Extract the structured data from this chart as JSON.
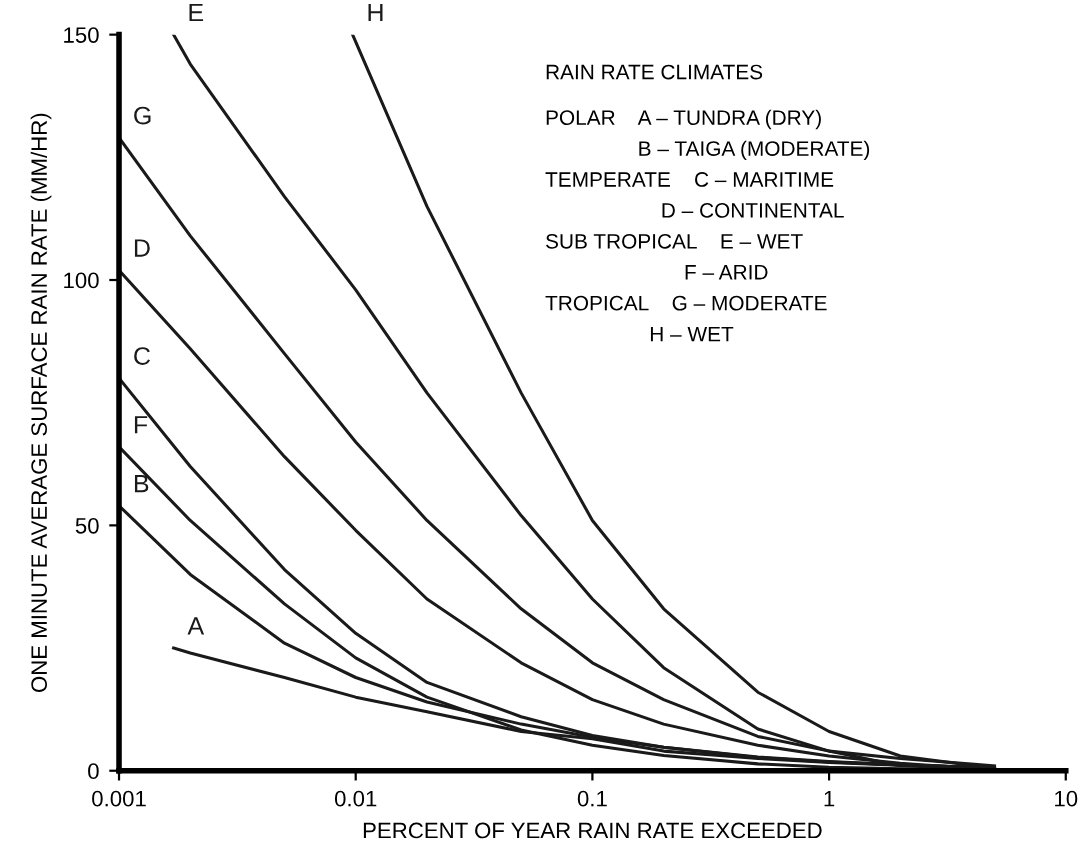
{
  "chart_data": {
    "type": "line",
    "xlabel": "PERCENT OF YEAR RAIN RATE EXCEEDED",
    "ylabel": "ONE MINUTE AVERAGE SURFACE RAIN RATE (MM/HR)",
    "log": "x",
    "xlim": [
      0.001,
      10
    ],
    "xticks": [
      0.001,
      0.01,
      0.1,
      1,
      10
    ],
    "ylim": [
      0,
      150
    ],
    "yticks": [
      0,
      50,
      100,
      150
    ],
    "grid": false,
    "legend": false,
    "marker": "none",
    "line_style": "solid",
    "annotations": [
      "RAIN RATE CLIMATES",
      "POLAR    A – TUNDRA (DRY)",
      "                B – TAIGA (MODERATE)",
      "TEMPERATE    C – MARITIME",
      "                    D – CONTINENTAL",
      "SUB TROPICAL    E – WET",
      "                        F – ARID",
      "TROPICAL    G – MODERATE",
      "                  H – WET"
    ],
    "series": [
      {
        "name": "A",
        "color": "#1a1a1a",
        "x": [
          0.0017,
          0.002,
          0.005,
          0.01,
          0.02,
          0.05,
          0.1,
          0.2,
          0.5,
          1,
          2,
          5
        ],
        "values": [
          25,
          24,
          19,
          15,
          12,
          8,
          6.5,
          4,
          2.5,
          1.7,
          1.1,
          0.6
        ]
      },
      {
        "name": "B",
        "color": "#1a1a1a",
        "x": [
          0.001,
          0.002,
          0.005,
          0.01,
          0.02,
          0.05,
          0.1,
          0.2,
          0.5,
          1,
          2,
          5
        ],
        "values": [
          54,
          40,
          26,
          19,
          14,
          9.5,
          6.8,
          4.8,
          2.7,
          1.8,
          1.2,
          0.6
        ]
      },
      {
        "name": "C",
        "color": "#1a1a1a",
        "x": [
          0.001,
          0.002,
          0.005,
          0.01,
          0.02,
          0.05,
          0.1,
          0.2,
          0.5,
          1,
          2,
          5
        ],
        "values": [
          80,
          62,
          41,
          28,
          18,
          11,
          7.2,
          4.8,
          2.8,
          1.9,
          1.2,
          0.5
        ]
      },
      {
        "name": "D",
        "color": "#1a1a1a",
        "x": [
          0.001,
          0.002,
          0.005,
          0.01,
          0.02,
          0.05,
          0.1,
          0.2,
          0.5,
          1,
          2,
          5
        ],
        "values": [
          102,
          86,
          64,
          49,
          35,
          22,
          14.5,
          9.5,
          5.2,
          3,
          1.5,
          0.2
        ]
      },
      {
        "name": "E",
        "color": "#1a1a1a",
        "x": [
          0.0017,
          0.002,
          0.005,
          0.01,
          0.02,
          0.05,
          0.1,
          0.2,
          0.5,
          1,
          2,
          5
        ],
        "values": [
          150,
          144,
          117,
          98,
          77,
          52,
          35,
          21,
          8.5,
          4,
          1,
          0.3
        ]
      },
      {
        "name": "F",
        "color": "#1a1a1a",
        "x": [
          0.001,
          0.002,
          0.005,
          0.01,
          0.02,
          0.05,
          0.1,
          0.2,
          0.5,
          1,
          2,
          5
        ],
        "values": [
          66,
          51,
          34,
          23,
          15,
          8.3,
          5.2,
          3.1,
          1.4,
          0.7,
          0.4,
          0.1
        ]
      },
      {
        "name": "G",
        "color": "#1a1a1a",
        "x": [
          0.001,
          0.002,
          0.005,
          0.01,
          0.02,
          0.05,
          0.1,
          0.2,
          0.5,
          1,
          2,
          5
        ],
        "values": [
          129,
          109,
          85,
          67,
          51,
          33,
          22,
          14.5,
          7,
          4,
          2.5,
          1
        ]
      },
      {
        "name": "H",
        "color": "#1a1a1a",
        "x": [
          0.0097,
          0.02,
          0.05,
          0.1,
          0.2,
          0.5,
          1,
          2,
          5
        ],
        "values": [
          150,
          115,
          77,
          51,
          33,
          16,
          8,
          3,
          0.5
        ]
      }
    ]
  }
}
